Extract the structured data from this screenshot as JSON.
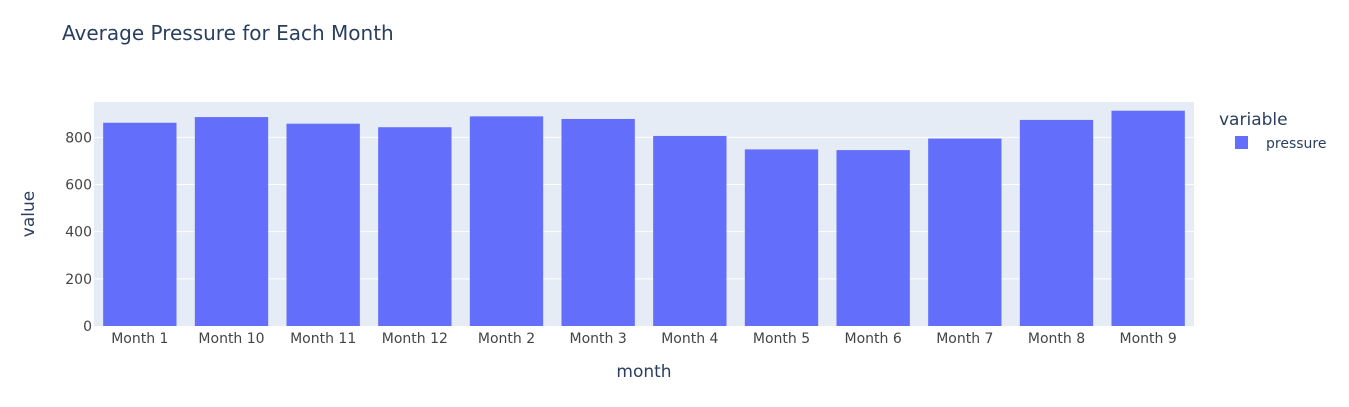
{
  "chart_data": {
    "type": "bar",
    "title": "Average Pressure for Each Month",
    "xlabel": "month",
    "ylabel": "value",
    "categories": [
      "Month 1",
      "Month 10",
      "Month 11",
      "Month 12",
      "Month 2",
      "Month 3",
      "Month 4",
      "Month 5",
      "Month 6",
      "Month 7",
      "Month 8",
      "Month 9"
    ],
    "series": [
      {
        "name": "pressure",
        "values": [
          862,
          886,
          858,
          843,
          889,
          878,
          806,
          749,
          746,
          795,
          874,
          913
        ]
      }
    ],
    "ylim": [
      0,
      950
    ],
    "yticks": [
      0,
      200,
      400,
      600,
      800
    ],
    "grid": true,
    "legend": {
      "title": "variable",
      "position": "top-right"
    },
    "colors": {
      "bar": "#636efa",
      "plot_bg": "#e5ecf6",
      "grid": "#ffffff",
      "text": "#2a3f5f",
      "tick_text": "#444444"
    }
  }
}
